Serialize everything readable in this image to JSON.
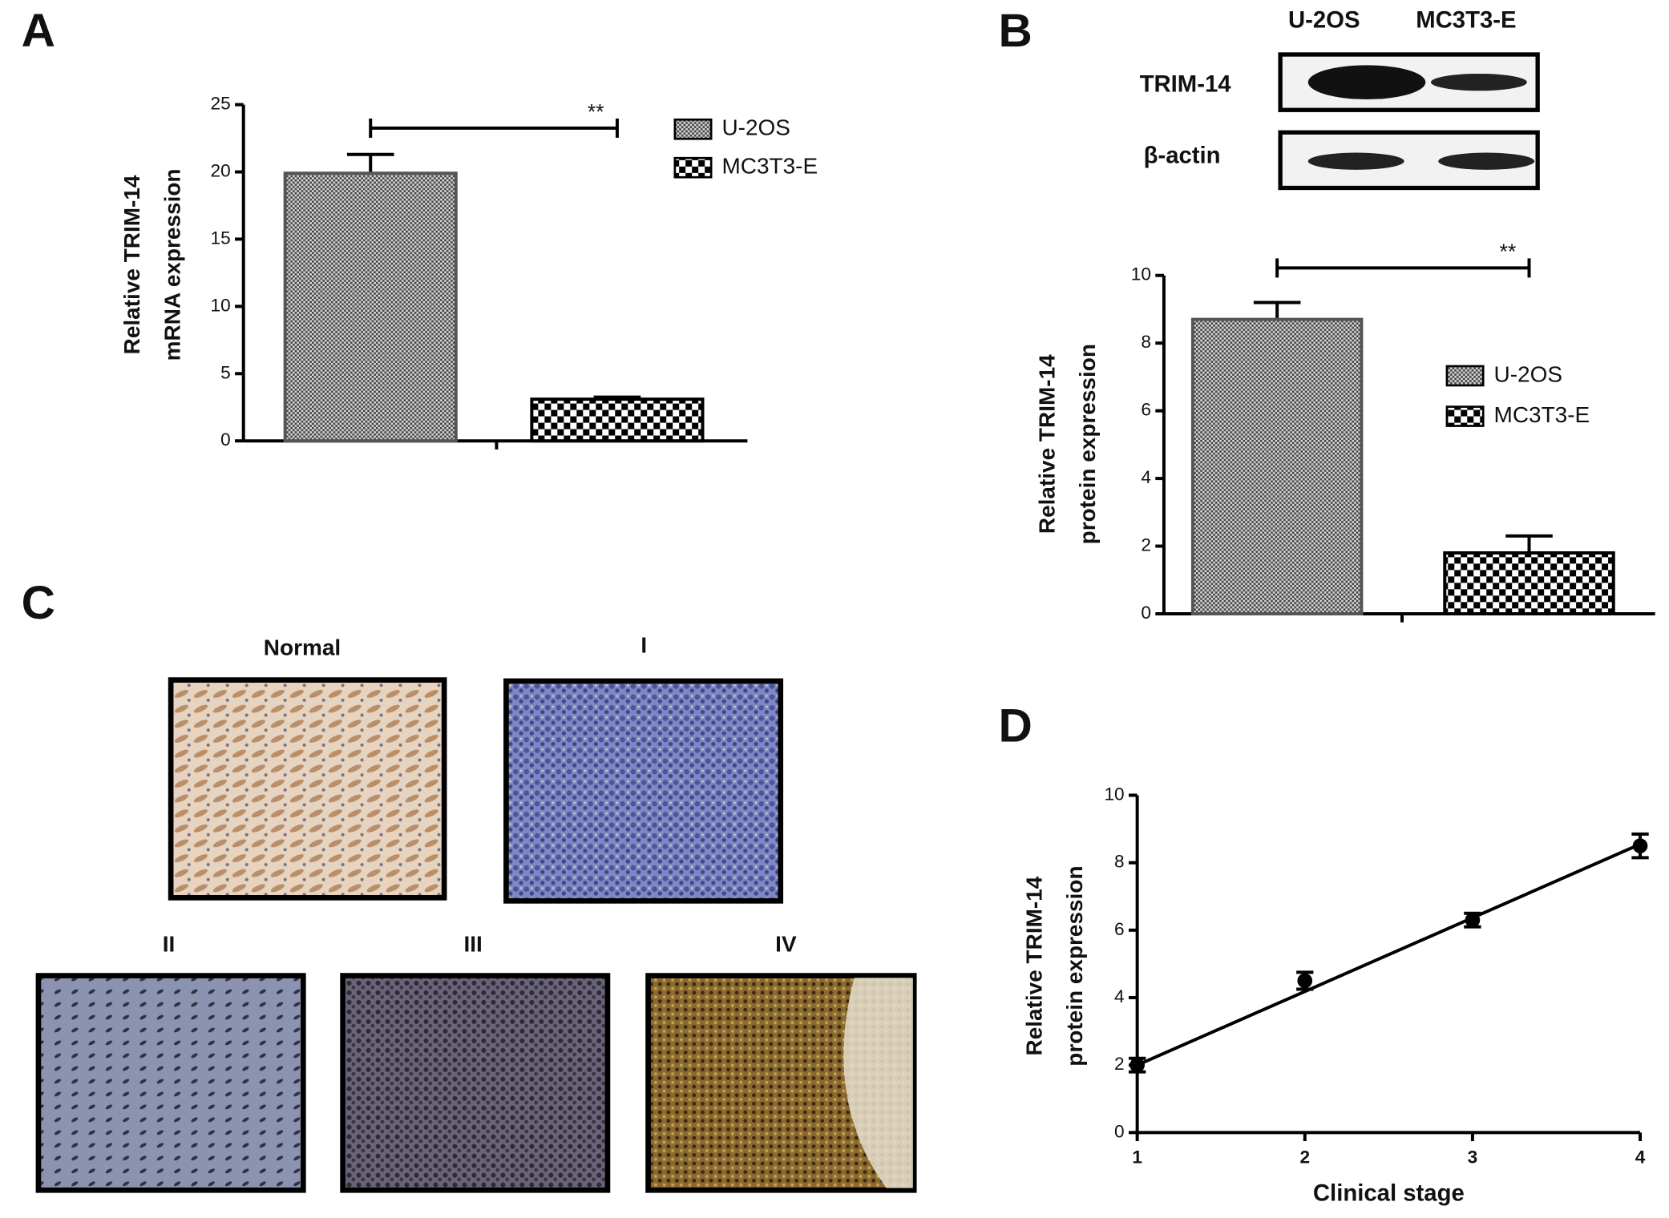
{
  "panel_labels": [
    "A",
    "B",
    "C",
    "D"
  ],
  "blot": {
    "columns": [
      "U-2OS",
      "MC3T3-E"
    ],
    "rows": [
      "TRIM-14",
      "β-actin"
    ]
  },
  "ihc": {
    "labels": [
      "Normal",
      "I",
      "II",
      "III",
      "IV"
    ]
  },
  "chart_data": [
    {
      "type": "bar",
      "y_label": [
        "Relative TRIM-14",
        "mRNA expression"
      ],
      "series": [
        {
          "name": "U-2OS",
          "pattern": "fine",
          "color": "#555555",
          "values": [
            19.9
          ],
          "errors": [
            1.4
          ]
        },
        {
          "name": "MC3T3-E",
          "pattern": "coarse",
          "color": "#000000",
          "values": [
            3.1
          ],
          "errors": [
            0.15
          ]
        }
      ],
      "annotation": "**",
      "ylim": [
        0,
        25
      ],
      "yticks": [
        0,
        5,
        10,
        15,
        20,
        25
      ]
    },
    {
      "type": "bar",
      "y_label": [
        "Relative TRIM-14",
        "protein expression"
      ],
      "series": [
        {
          "name": "U-2OS",
          "pattern": "fine",
          "color": "#555555",
          "values": [
            8.7
          ],
          "errors": [
            0.5
          ]
        },
        {
          "name": "MC3T3-E",
          "pattern": "coarse",
          "color": "#000000",
          "values": [
            1.8
          ],
          "errors": [
            0.5
          ]
        }
      ],
      "annotation": "**",
      "ylim": [
        0,
        10
      ],
      "yticks": [
        0,
        2,
        4,
        6,
        8,
        10
      ]
    },
    {
      "type": "scatter",
      "y_label": [
        "Relative TRIM-14",
        "protein expression"
      ],
      "x_label": "Clinical stage",
      "x": [
        1,
        2,
        3,
        4
      ],
      "series": [
        {
          "color": "#000000",
          "values": [
            2.0,
            4.5,
            6.3,
            8.5
          ],
          "errors": [
            0.2,
            0.25,
            0.2,
            0.35
          ]
        }
      ],
      "trend": {
        "x": [
          1,
          4
        ],
        "values": [
          2.0,
          8.55
        ]
      },
      "xlim": [
        1,
        4
      ],
      "xticks": [
        1,
        2,
        3,
        4
      ],
      "ylim": [
        0,
        10
      ],
      "yticks": [
        0,
        2,
        4,
        6,
        8,
        10
      ]
    }
  ]
}
